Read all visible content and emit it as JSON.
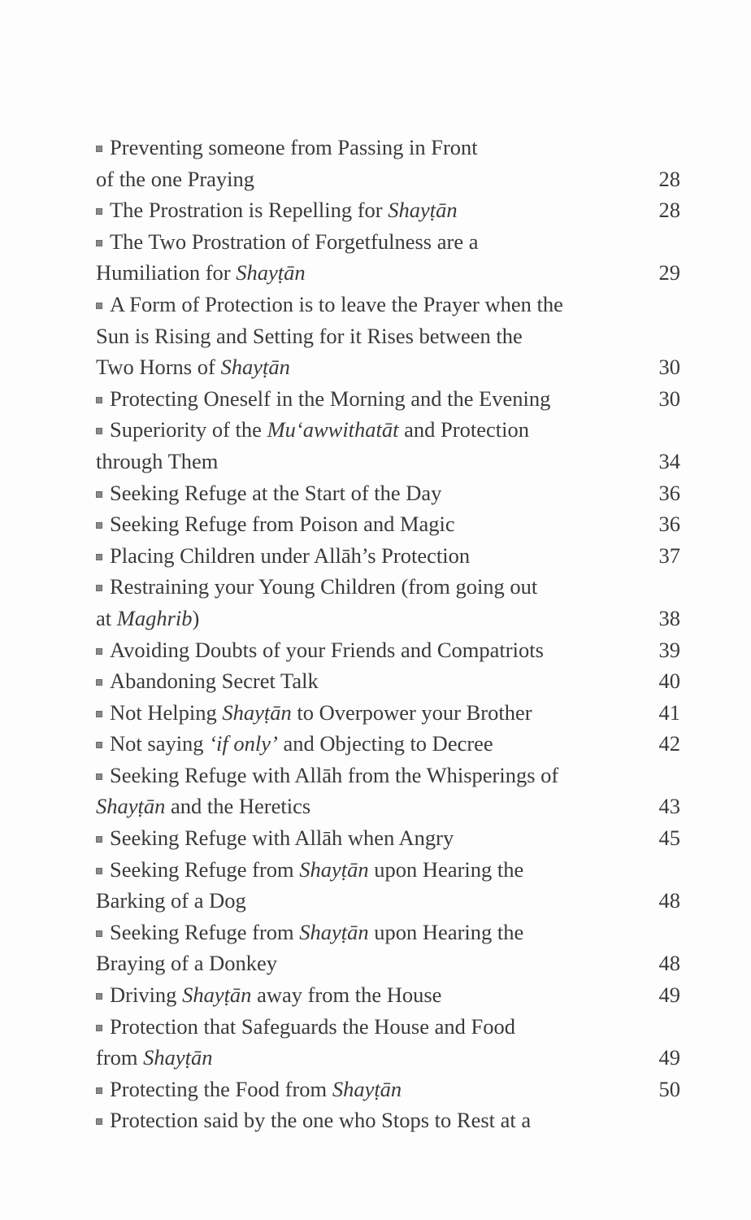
{
  "toc": {
    "entries": [
      {
        "lines": [
          [
            "Preventing someone from Passing in Front"
          ],
          [
            "of the one Praying"
          ]
        ],
        "page": "28"
      },
      {
        "lines": [
          [
            "The Prostration is Repelling for ",
            {
              "em": "Shayṭān"
            }
          ]
        ],
        "page": "28"
      },
      {
        "lines": [
          [
            "The Two Prostration of Forgetfulness are a"
          ],
          [
            "Humiliation for ",
            {
              "em": "Shayṭān"
            }
          ]
        ],
        "page": "29"
      },
      {
        "lines": [
          [
            "A Form of Protection is to leave the Prayer when the"
          ],
          [
            "Sun is Rising and Setting for it Rises between the"
          ],
          [
            "Two Horns of ",
            {
              "em": "Shayṭān"
            }
          ]
        ],
        "page": "30"
      },
      {
        "lines": [
          [
            "Protecting Oneself in the Morning and the Evening"
          ]
        ],
        "page": "30"
      },
      {
        "lines": [
          [
            "Superiority of the ",
            {
              "em": "Mu‘awwithatāt"
            },
            " and Protection"
          ],
          [
            "through Them"
          ]
        ],
        "page": "34"
      },
      {
        "lines": [
          [
            "Seeking Refuge at the Start of the Day"
          ]
        ],
        "page": "36"
      },
      {
        "lines": [
          [
            "Seeking Refuge from Poison and Magic"
          ]
        ],
        "page": "36"
      },
      {
        "lines": [
          [
            "Placing Children under Allāh’s Protection"
          ]
        ],
        "page": "37"
      },
      {
        "lines": [
          [
            "Restraining your Young Children (from going out"
          ],
          [
            "at ",
            {
              "em": "Maghrib"
            },
            ")"
          ]
        ],
        "page": "38"
      },
      {
        "lines": [
          [
            "Avoiding Doubts of your Friends and Compatriots"
          ]
        ],
        "page": "39"
      },
      {
        "lines": [
          [
            "Abandoning Secret Talk"
          ]
        ],
        "page": "40"
      },
      {
        "lines": [
          [
            "Not Helping ",
            {
              "em": "Shayṭān"
            },
            " to Overpower your Brother"
          ]
        ],
        "page": "41"
      },
      {
        "lines": [
          [
            "Not saying ",
            {
              "em": "‘if only’"
            },
            " and Objecting to Decree"
          ]
        ],
        "page": "42"
      },
      {
        "lines": [
          [
            "Seeking Refuge with Allāh from the Whisperings of"
          ],
          [
            {
              "em": "Shayṭān"
            },
            " and the Heretics"
          ]
        ],
        "page": "43"
      },
      {
        "lines": [
          [
            "Seeking Refuge with Allāh when Angry"
          ]
        ],
        "page": "45"
      },
      {
        "lines": [
          [
            "Seeking Refuge from ",
            {
              "em": "Shayṭān"
            },
            " upon Hearing the"
          ],
          [
            "Barking of a Dog"
          ]
        ],
        "page": "48"
      },
      {
        "lines": [
          [
            "Seeking Refuge from ",
            {
              "em": "Shayṭān"
            },
            " upon Hearing the"
          ],
          [
            "Braying of a Donkey"
          ]
        ],
        "page": "48"
      },
      {
        "lines": [
          [
            "Driving ",
            {
              "em": "Shayṭān"
            },
            " away from the House"
          ]
        ],
        "page": "49"
      },
      {
        "lines": [
          [
            "Protection that Safeguards the House and Food"
          ],
          [
            "from ",
            {
              "em": "Shayṭān"
            }
          ]
        ],
        "page": "49"
      },
      {
        "lines": [
          [
            "Protecting the Food from ",
            {
              "em": "Shayṭān"
            }
          ]
        ],
        "page": "50"
      },
      {
        "lines": [
          [
            "Protection  said  by the  one who Stops  to  Rest  at  a"
          ]
        ],
        "page": null
      }
    ]
  }
}
